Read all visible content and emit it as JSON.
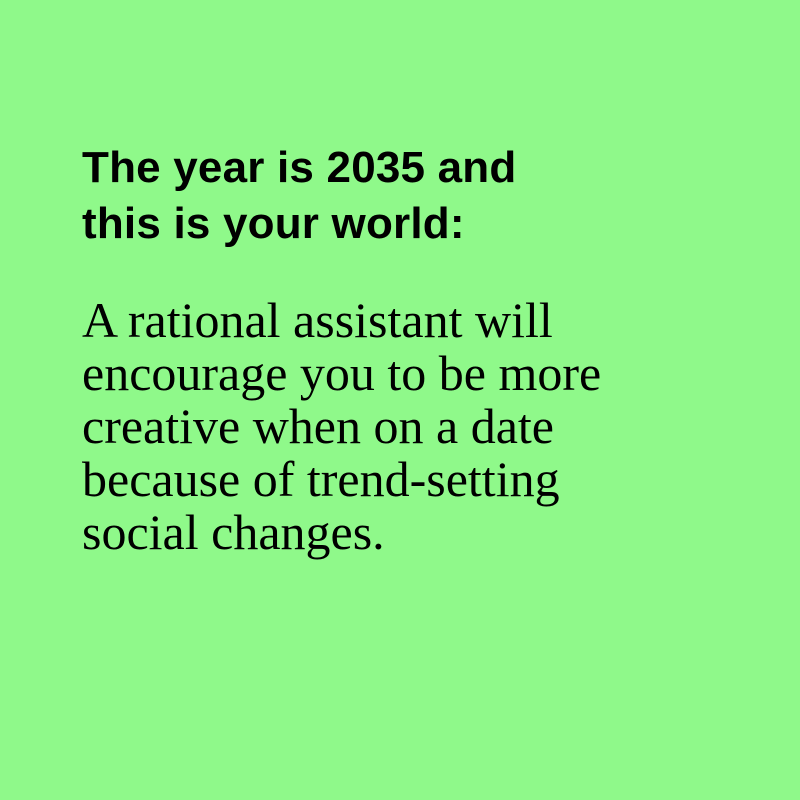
{
  "colors": {
    "background": "#8ff98a",
    "text": "#000000"
  },
  "heading": {
    "lines": [
      "The year is 2035 and",
      "this is your world:"
    ]
  },
  "body": {
    "lines": [
      "A rational assistant will",
      "encourage you to be more",
      "creative when on a date",
      "because of trend-setting",
      "social changes."
    ]
  }
}
